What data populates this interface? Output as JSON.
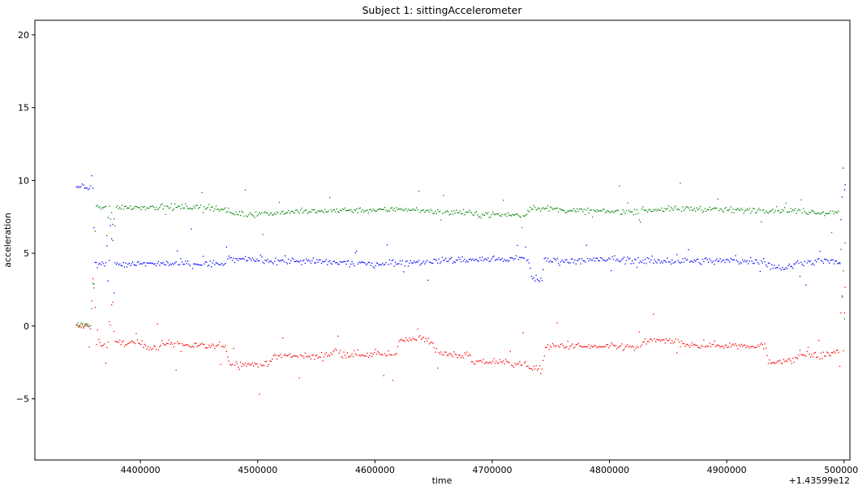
{
  "chart_data": {
    "type": "scatter",
    "title": "Subject 1: sittingAccelerometer",
    "xlabel": "time",
    "ylabel": "acceleration",
    "offset_label": "+1.43599e12",
    "xlim": [
      4310000,
      5005000
    ],
    "ylim": [
      -9.2,
      21
    ],
    "x_ticks": [
      4400000,
      4500000,
      4600000,
      4700000,
      4800000,
      4900000,
      5000000
    ],
    "y_ticks": [
      -5,
      0,
      5,
      10,
      15,
      20
    ],
    "grid": false,
    "legend": "none",
    "series": [
      {
        "color": "#ff0000",
        "points": [
          [
            4345000,
            0.0
          ],
          [
            4352000,
            0.0
          ],
          [
            4357000,
            0.0
          ],
          [
            4360000,
            2.5
          ],
          [
            4362000,
            -1.2
          ],
          [
            4370000,
            -1.3
          ],
          [
            4376000,
            1.5
          ],
          [
            4378000,
            -1.2
          ],
          [
            4385000,
            -1.1
          ],
          [
            4400000,
            -1.2
          ],
          [
            4415000,
            -1.5
          ],
          [
            4420000,
            -1.1
          ],
          [
            4440000,
            -1.3
          ],
          [
            4460000,
            -1.4
          ],
          [
            4472000,
            -1.3
          ],
          [
            4475000,
            -2.5
          ],
          [
            4490000,
            -2.6
          ],
          [
            4510000,
            -2.6
          ],
          [
            4513000,
            -2.0
          ],
          [
            4530000,
            -2.0
          ],
          [
            4550000,
            -2.1
          ],
          [
            4562000,
            -1.9
          ],
          [
            4565000,
            -1.6
          ],
          [
            4572000,
            -1.9
          ],
          [
            4590000,
            -1.9
          ],
          [
            4610000,
            -2.0
          ],
          [
            4618000,
            -1.9
          ],
          [
            4620000,
            -0.9
          ],
          [
            4635000,
            -0.8
          ],
          [
            4648000,
            -1.0
          ],
          [
            4652000,
            -1.9
          ],
          [
            4665000,
            -1.9
          ],
          [
            4680000,
            -2.0
          ],
          [
            4682000,
            -2.5
          ],
          [
            4700000,
            -2.4
          ],
          [
            4715000,
            -2.5
          ],
          [
            4730000,
            -2.6
          ],
          [
            4733000,
            -2.9
          ],
          [
            4742000,
            -3.0
          ],
          [
            4745000,
            -1.4
          ],
          [
            4760000,
            -1.3
          ],
          [
            4780000,
            -1.4
          ],
          [
            4800000,
            -1.4
          ],
          [
            4815000,
            -1.4
          ],
          [
            4825000,
            -1.5
          ],
          [
            4830000,
            -1.0
          ],
          [
            4845000,
            -0.9
          ],
          [
            4855000,
            -1.1
          ],
          [
            4865000,
            -1.3
          ],
          [
            4875000,
            -1.3
          ],
          [
            4890000,
            -1.3
          ],
          [
            4905000,
            -1.3
          ],
          [
            4920000,
            -1.3
          ],
          [
            4932000,
            -1.3
          ],
          [
            4935000,
            -2.5
          ],
          [
            4945000,
            -2.3
          ],
          [
            4955000,
            -2.4
          ],
          [
            4962000,
            -1.9
          ],
          [
            4975000,
            -2.0
          ],
          [
            4988000,
            -1.9
          ],
          [
            4995000,
            -1.6
          ],
          [
            5000000,
            1.0
          ],
          [
            5001000,
            -0.8
          ]
        ],
        "noise": 0.12
      },
      {
        "color": "#008000",
        "points": [
          [
            4345000,
            0.1
          ],
          [
            4352000,
            0.1
          ],
          [
            4357000,
            0.1
          ],
          [
            4360000,
            3.0
          ],
          [
            4362000,
            8.3
          ],
          [
            4370000,
            8.1
          ],
          [
            4376000,
            6.0
          ],
          [
            4378000,
            8.2
          ],
          [
            4400000,
            8.2
          ],
          [
            4420000,
            8.2
          ],
          [
            4440000,
            8.2
          ],
          [
            4460000,
            8.2
          ],
          [
            4472000,
            8.0
          ],
          [
            4478000,
            7.8
          ],
          [
            4500000,
            7.7
          ],
          [
            4515000,
            7.8
          ],
          [
            4530000,
            7.9
          ],
          [
            4550000,
            7.9
          ],
          [
            4565000,
            8.0
          ],
          [
            4590000,
            8.0
          ],
          [
            4610000,
            8.0
          ],
          [
            4620000,
            8.1
          ],
          [
            4640000,
            8.0
          ],
          [
            4652000,
            7.9
          ],
          [
            4680000,
            7.8
          ],
          [
            4683000,
            7.7
          ],
          [
            4710000,
            7.7
          ],
          [
            4728000,
            7.6
          ],
          [
            4732000,
            8.2
          ],
          [
            4745000,
            8.1
          ],
          [
            4760000,
            8.0
          ],
          [
            4790000,
            7.9
          ],
          [
            4815000,
            7.9
          ],
          [
            4830000,
            8.0
          ],
          [
            4870000,
            8.1
          ],
          [
            4900000,
            8.0
          ],
          [
            4930000,
            8.0
          ],
          [
            4935000,
            8.0
          ],
          [
            4950000,
            8.0
          ],
          [
            4965000,
            7.9
          ],
          [
            4980000,
            7.8
          ],
          [
            4995000,
            7.9
          ],
          [
            5000000,
            0.5
          ],
          [
            5001000,
            7.8
          ]
        ],
        "noise": 0.1
      },
      {
        "color": "#0000ff",
        "points": [
          [
            4345000,
            9.6
          ],
          [
            4352000,
            9.6
          ],
          [
            4357000,
            9.6
          ],
          [
            4359000,
            9.6
          ],
          [
            4361000,
            4.3
          ],
          [
            4370000,
            4.2
          ],
          [
            4376000,
            7.0
          ],
          [
            4378000,
            4.3
          ],
          [
            4400000,
            4.3
          ],
          [
            4440000,
            4.3
          ],
          [
            4470000,
            4.3
          ],
          [
            4473000,
            4.6
          ],
          [
            4500000,
            4.6
          ],
          [
            4530000,
            4.5
          ],
          [
            4560000,
            4.4
          ],
          [
            4590000,
            4.3
          ],
          [
            4620000,
            4.4
          ],
          [
            4650000,
            4.5
          ],
          [
            4680000,
            4.6
          ],
          [
            4710000,
            4.6
          ],
          [
            4730000,
            4.7
          ],
          [
            4733000,
            3.4
          ],
          [
            4742000,
            3.2
          ],
          [
            4744000,
            4.6
          ],
          [
            4760000,
            4.5
          ],
          [
            4800000,
            4.6
          ],
          [
            4840000,
            4.5
          ],
          [
            4880000,
            4.5
          ],
          [
            4931000,
            4.5
          ],
          [
            4935000,
            4.2
          ],
          [
            4950000,
            4.0
          ],
          [
            4962000,
            4.4
          ],
          [
            4980000,
            4.5
          ],
          [
            4996000,
            4.4
          ],
          [
            5000000,
            9.5
          ],
          [
            5001000,
            4.5
          ]
        ],
        "noise": 0.12
      }
    ]
  }
}
